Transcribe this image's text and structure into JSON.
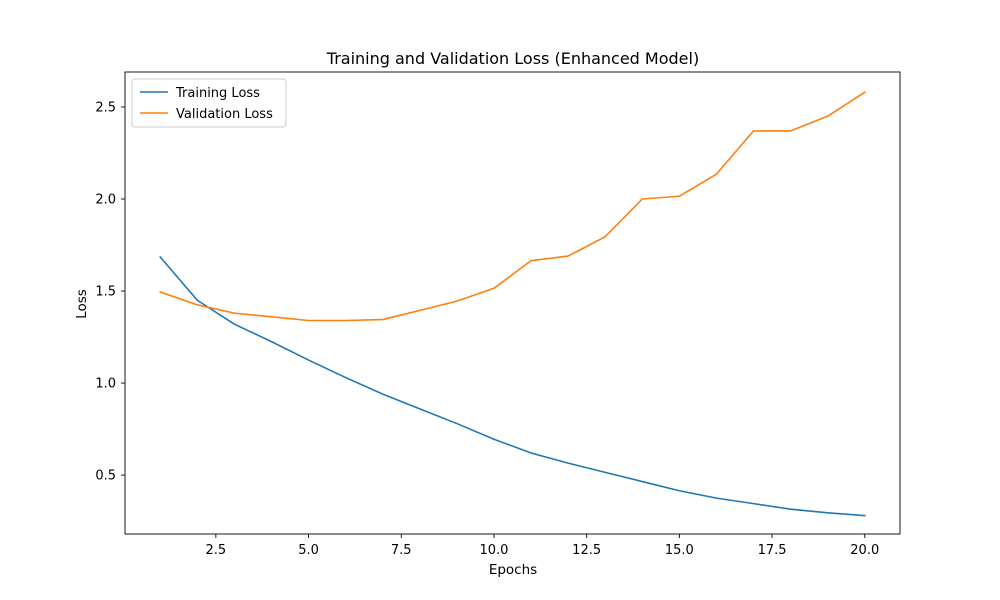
{
  "chart_data": {
    "type": "line",
    "title": "Training and Validation Loss (Enhanced Model)",
    "xlabel": "Epochs",
    "ylabel": "Loss",
    "xlim": [
      0.05,
      20.95
    ],
    "ylim": [
      0.18,
      2.69
    ],
    "xticks": [
      2.5,
      5.0,
      7.5,
      10.0,
      12.5,
      15.0,
      17.5,
      20.0
    ],
    "xtick_labels": [
      "2.5",
      "5.0",
      "7.5",
      "10.0",
      "12.5",
      "15.0",
      "17.5",
      "20.0"
    ],
    "yticks": [
      0.5,
      1.0,
      1.5,
      2.0,
      2.5
    ],
    "ytick_labels": [
      "0.5",
      "1.0",
      "1.5",
      "2.0",
      "2.5"
    ],
    "grid": false,
    "legend_position": "top-left",
    "x": [
      1,
      2,
      3,
      4,
      5,
      6,
      7,
      8,
      9,
      10,
      11,
      12,
      13,
      14,
      15,
      16,
      17,
      18,
      19,
      20
    ],
    "series": [
      {
        "name": "Training Loss",
        "color": "#1f77b4",
        "values": [
          1.685,
          1.45,
          1.32,
          1.225,
          1.125,
          1.03,
          0.94,
          0.86,
          0.78,
          0.695,
          0.62,
          0.565,
          0.515,
          0.465,
          0.415,
          0.375,
          0.345,
          0.315,
          0.295,
          0.28
        ]
      },
      {
        "name": "Validation Loss",
        "color": "#ff7f0e",
        "values": [
          1.495,
          1.425,
          1.38,
          1.36,
          1.34,
          1.34,
          1.345,
          1.395,
          1.445,
          1.515,
          1.665,
          1.69,
          1.795,
          2.0,
          2.015,
          2.135,
          2.37,
          2.37,
          2.45,
          2.58
        ]
      }
    ]
  }
}
